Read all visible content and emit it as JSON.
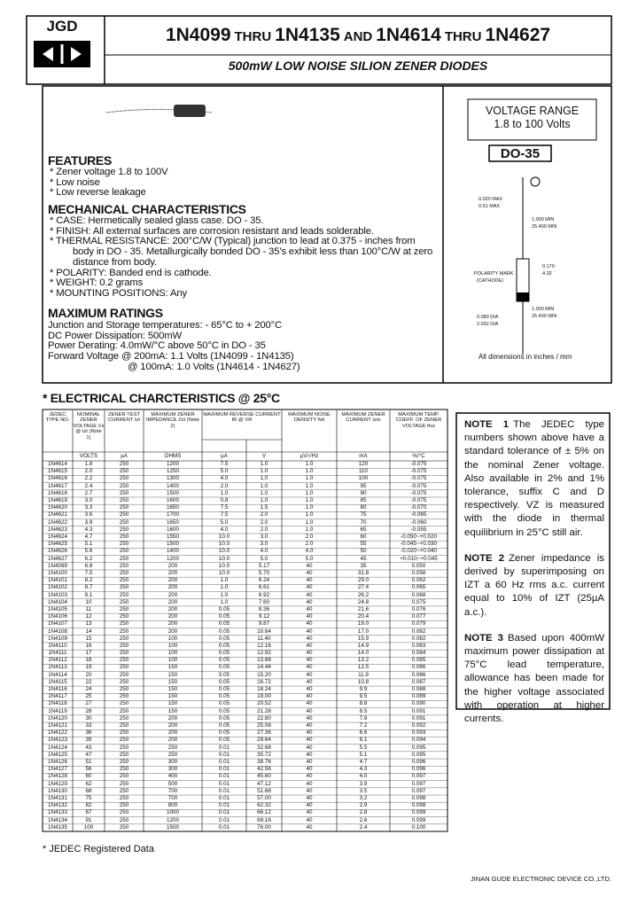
{
  "header": {
    "logo": "JGD",
    "title_parts": [
      "1N4099",
      "THRU",
      "1N4135",
      "AND",
      "1N4614",
      "THRU",
      "1N4627"
    ],
    "subtitle": "500mW LOW NOISE SILION ZENER DIODES"
  },
  "voltage_range": {
    "title": "VOLTAGE RANGE",
    "value": "1.8 to 100 Volts"
  },
  "package": {
    "name": "DO-35",
    "labels": [
      "0.020 MAX",
      "0.51 MAX",
      "1.000 MIN",
      "25.400 MIN",
      "POLARITY MARK",
      "(CATHODE)",
      "0.170",
      "4.32",
      "1.000 MIN",
      "25.400 MIN",
      "0.080 DIA",
      "2.032 DIA"
    ],
    "note": "All dimensions in inches / mm"
  },
  "features": {
    "title": "FEATURES",
    "items": [
      "* Zener voltage 1.8 to 100V",
      "* Low noise",
      "* Low reverse leakage"
    ]
  },
  "mechanical": {
    "title": "MECHANICAL CHARACTERISTICS",
    "items": [
      "* CASE: Hermetically sealed glass case. DO - 35.",
      "* FINISH: All external surfaces are corrosion resistant and leads solderable.",
      "* THERMAL RESISTANCE: 200°C/W (Typical) junction to lead at 0.375 - inches from body in DO - 35. Metallurgically bonded DO - 35's exhibit less than 100°C/W at zero distance from body.",
      "* POLARITY: Banded end is cathode.",
      "* WEIGHT: 0.2 grams",
      "* MOUNTING POSITIONS: Any"
    ]
  },
  "ratings": {
    "title": "MAXIMUM RATINGS",
    "items": [
      "Junction and Storage temperatures: - 65°C to + 200°C",
      "DC Power Dissipation: 500mW",
      "Power Derating: 4.0mW/°C above 50°C in DO - 35",
      "Forward Voltage @ 200mA: 1.1 Volts (1N4099 - 1N4135)",
      "@ 100mA: 1.0 Volts (1N4614 - 1N4627)"
    ]
  },
  "table": {
    "title": "* ELECTRICAL CHARCTERISTICS @ 25°C",
    "headers": [
      "JEDEC TYPE NO.",
      "NOMINAL ZENER VOLTAGE Vz @ Izt (Note 1)",
      "ZENER TEST CURRENT Izt",
      "MAXIMUM ZENER IMPEDANCE Zzt (Note 2)",
      "MAXIMUM REVERSE CURRENT IR @ VR",
      "MAXIMUM NOISE DENSITY Nd",
      "MAXIMUM ZENER CURRENT Izm",
      "MAXIMUM TEMP. COEFF. OF ZENER VOLTAGE θvz"
    ],
    "units": [
      "",
      "VOLTS",
      "µA",
      "OHMS",
      "µA",
      "V",
      "µV/√Hz",
      "mA",
      "%/°C"
    ],
    "rows": [
      [
        "1N4614",
        "1.8",
        "250",
        "1200",
        "7.5",
        "1.0",
        "1.0",
        "120",
        "-0.075"
      ],
      [
        "1N4615",
        "2.0",
        "250",
        "1250",
        "5.0",
        "1.0",
        "1.0",
        "110",
        "-0.075"
      ],
      [
        "1N4616",
        "2.2",
        "250",
        "1300",
        "4.0",
        "1.0",
        "1.0",
        "100",
        "-0.075"
      ],
      [
        "1N4617",
        "2.4",
        "250",
        "1400",
        "2.0",
        "1.0",
        "1.0",
        "95",
        "-0.075"
      ],
      [
        "1N4618",
        "2.7",
        "250",
        "1500",
        "1.0",
        "1.0",
        "1.0",
        "90",
        "-0.075"
      ],
      [
        "1N4619",
        "3.0",
        "250",
        "1600",
        "0.8",
        "1.0",
        "1.0",
        "85",
        "-0.075"
      ],
      [
        "1N4620",
        "3.3",
        "250",
        "1650",
        "7.5",
        "1.5",
        "1.0",
        "80",
        "-0.070"
      ],
      [
        "1N4621",
        "3.6",
        "250",
        "1700",
        "7.5",
        "2.0",
        "1.0",
        "75",
        "-0.065"
      ],
      [
        "1N4622",
        "3.9",
        "250",
        "1650",
        "5.0",
        "2.0",
        "1.0",
        "70",
        "-0.060"
      ],
      [
        "1N4623",
        "4.3",
        "250",
        "1600",
        "4.0",
        "2.0",
        "1.0",
        "65",
        "-0.055"
      ],
      [
        "1N4624",
        "4.7",
        "250",
        "1550",
        "10.0",
        "3.0",
        "2.0",
        "60",
        "-0.050~+0.020"
      ],
      [
        "1N4625",
        "5.1",
        "250",
        "1500",
        "10.0",
        "3.0",
        "2.0",
        "55",
        "-0.045~+0.030"
      ],
      [
        "1N4626",
        "5.6",
        "250",
        "1400",
        "10.0",
        "4.0",
        "4.0",
        "50",
        "-0.020~+0.040"
      ],
      [
        "1N4627",
        "6.2",
        "250",
        "1200",
        "10.0",
        "5.0",
        "5.0",
        "45",
        "+0.010~+0.045"
      ],
      [
        "1N4099",
        "6.8",
        "250",
        "200",
        "10.0",
        "5.17",
        "40",
        "35",
        "0.050"
      ],
      [
        "1N4100",
        "7.5",
        "250",
        "200",
        "10.0",
        "5.70",
        "40",
        "31.8",
        "0.058"
      ],
      [
        "1N4101",
        "8.2",
        "250",
        "200",
        "1.0",
        "6.24",
        "40",
        "29.0",
        "0.062"
      ],
      [
        "1N4102",
        "8.7",
        "250",
        "200",
        "1.0",
        "6.61",
        "40",
        "27.4",
        "0.065"
      ],
      [
        "1N4103",
        "9.1",
        "250",
        "200",
        "1.0",
        "6.92",
        "40",
        "26.2",
        "0.068"
      ],
      [
        "1N4104",
        "10",
        "250",
        "200",
        "1.0",
        "7.60",
        "40",
        "24.8",
        "0.075"
      ],
      [
        "1N4105",
        "11",
        "250",
        "200",
        "0.05",
        "8.36",
        "40",
        "21.6",
        "0.076"
      ],
      [
        "1N4106",
        "12",
        "250",
        "200",
        "0.05",
        "9.12",
        "40",
        "20.4",
        "0.077"
      ],
      [
        "1N4107",
        "13",
        "250",
        "200",
        "0.05",
        "9.87",
        "40",
        "19.0",
        "0.079"
      ],
      [
        "1N4108",
        "14",
        "250",
        "200",
        "0.05",
        "10.64",
        "40",
        "17.0",
        "0.082"
      ],
      [
        "1N4109",
        "15",
        "250",
        "100",
        "0.05",
        "11.40",
        "40",
        "15.9",
        "0.082"
      ],
      [
        "1N4110",
        "16",
        "250",
        "100",
        "0.05",
        "12.16",
        "40",
        "14.9",
        "0.083"
      ],
      [
        "1N4111",
        "17",
        "250",
        "100",
        "0.05",
        "12.92",
        "40",
        "14.0",
        "0.084"
      ],
      [
        "1N4112",
        "18",
        "250",
        "100",
        "0.05",
        "13.68",
        "40",
        "13.2",
        "0.085"
      ],
      [
        "1N4113",
        "19",
        "250",
        "150",
        "0.05",
        "14.44",
        "40",
        "12.5",
        "0.086"
      ],
      [
        "1N4114",
        "20",
        "250",
        "150",
        "0.05",
        "15.20",
        "40",
        "11.9",
        "0.086"
      ],
      [
        "1N4115",
        "22",
        "250",
        "150",
        "0.05",
        "16.72",
        "40",
        "10.8",
        "0.087"
      ],
      [
        "1N4116",
        "24",
        "250",
        "150",
        "0.05",
        "18.24",
        "40",
        "9.9",
        "0.088"
      ],
      [
        "1N4117",
        "25",
        "250",
        "150",
        "0.05",
        "19.00",
        "40",
        "9.5",
        "0.089"
      ],
      [
        "1N4118",
        "27",
        "250",
        "150",
        "0.05",
        "20.52",
        "40",
        "8.8",
        "0.090"
      ],
      [
        "1N4119",
        "28",
        "250",
        "150",
        "0.05",
        "21.28",
        "40",
        "8.5",
        "0.091"
      ],
      [
        "1N4120",
        "30",
        "250",
        "200",
        "0.05",
        "22.80",
        "40",
        "7.9",
        "0.091"
      ],
      [
        "1N4121",
        "33",
        "250",
        "200",
        "0.05",
        "25.08",
        "40",
        "7.2",
        "0.092"
      ],
      [
        "1N4122",
        "36",
        "250",
        "200",
        "0.05",
        "27.36",
        "40",
        "6.6",
        "0.093"
      ],
      [
        "1N4123",
        "39",
        "250",
        "200",
        "0.05",
        "29.64",
        "40",
        "6.1",
        "0.094"
      ],
      [
        "1N4124",
        "43",
        "250",
        "250",
        "0.01",
        "32.68",
        "40",
        "5.5",
        "0.095"
      ],
      [
        "1N4125",
        "47",
        "250",
        "250",
        "0.01",
        "35.72",
        "40",
        "5.1",
        "0.095"
      ],
      [
        "1N4126",
        "51",
        "250",
        "300",
        "0.01",
        "38.76",
        "40",
        "4.7",
        "0.096"
      ],
      [
        "1N4127",
        "56",
        "250",
        "300",
        "0.01",
        "42.56",
        "40",
        "4.3",
        "0.096"
      ],
      [
        "1N4128",
        "60",
        "250",
        "400",
        "0.01",
        "45.60",
        "40",
        "4.0",
        "0.097"
      ],
      [
        "1N4129",
        "62",
        "250",
        "500",
        "0.01",
        "47.12",
        "40",
        "3.9",
        "0.097"
      ],
      [
        "1N4130",
        "68",
        "250",
        "700",
        "0.01",
        "51.68",
        "40",
        "3.5",
        "0.097"
      ],
      [
        "1N4131",
        "75",
        "250",
        "700",
        "0.01",
        "57.00",
        "40",
        "3.2",
        "0.098"
      ],
      [
        "1N4132",
        "82",
        "250",
        "800",
        "0.01",
        "62.32",
        "40",
        "2.9",
        "0.098"
      ],
      [
        "1N4133",
        "87",
        "250",
        "1000",
        "0.01",
        "66.12",
        "40",
        "2.8",
        "0.099"
      ],
      [
        "1N4134",
        "91",
        "250",
        "1200",
        "0.01",
        "69.16",
        "40",
        "2.6",
        "0.099"
      ],
      [
        "1N4135",
        "100",
        "250",
        "1500",
        "0.01",
        "76.00",
        "40",
        "2.4",
        "0.100"
      ]
    ]
  },
  "notes": [
    {
      "label": "NOTE 1",
      "text": "The JEDEC type numbers shown above have a standard tolerance of ± 5% on the nominal Zener voltage. Also available in 2% and 1% tolerance, suffix C and D respectively. VZ is measured with the diode in thermal equilibrium in 25°C still air."
    },
    {
      "label": "NOTE 2",
      "text": "Zener impedance is derived by superimposing on IZT a 60 Hz rms a.c. current equal to 10% of IZT (25µA a.c.)."
    },
    {
      "label": "NOTE 3",
      "text": "Based upon 400mW maximum power dissipation at 75°C lead temperature, allowance has been made for the higher voltage associated with operation at higher currents."
    }
  ],
  "footnote": "* JEDEC Registered Data",
  "footer": "JINAN GUDE ELECTRONIC DEVICE CO.,LTD."
}
